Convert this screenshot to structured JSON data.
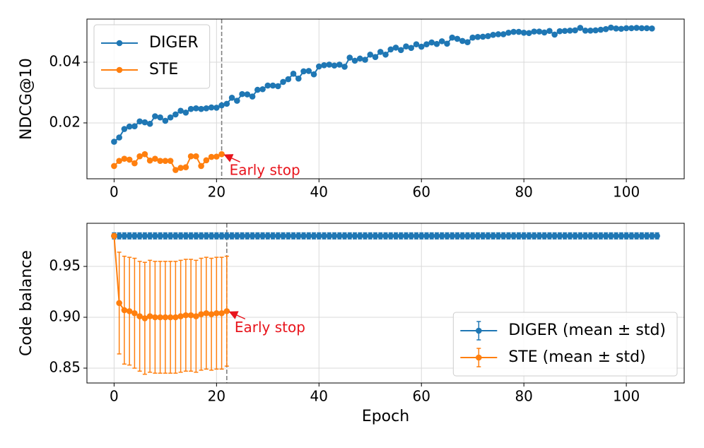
{
  "chart_data": [
    {
      "type": "line",
      "ylabel": "NDCG@10",
      "xlim": [
        -5.3,
        111.3
      ],
      "ylim": [
        0.0016,
        0.0542
      ],
      "xticks": [
        0,
        20,
        40,
        60,
        80,
        100
      ],
      "yticks": [
        0.02,
        0.04
      ],
      "grid": true,
      "legend": "upper left",
      "vline": 21,
      "annotation": {
        "text": "Early stop",
        "x": 21,
        "y": 0.0097
      },
      "series": [
        {
          "name": "DIGER",
          "color": "#1f77b4",
          "x": [
            0,
            1,
            2,
            3,
            4,
            5,
            6,
            7,
            8,
            9,
            10,
            11,
            12,
            13,
            14,
            15,
            16,
            17,
            18,
            19,
            20,
            21,
            22,
            23,
            24,
            25,
            26,
            27,
            28,
            29,
            30,
            31,
            32,
            33,
            34,
            35,
            36,
            37,
            38,
            39,
            40,
            41,
            42,
            43,
            44,
            45,
            46,
            47,
            48,
            49,
            50,
            51,
            52,
            53,
            54,
            55,
            56,
            57,
            58,
            59,
            60,
            61,
            62,
            63,
            64,
            65,
            66,
            67,
            68,
            69,
            70,
            71,
            72,
            73,
            74,
            75,
            76,
            77,
            78,
            79,
            80,
            81,
            82,
            83,
            84,
            85,
            86,
            87,
            88,
            89,
            90,
            91,
            92,
            93,
            94,
            95,
            96,
            97,
            98,
            99,
            100,
            101,
            102,
            103,
            104,
            105
          ],
          "values": [
            0.0138,
            0.0152,
            0.018,
            0.0188,
            0.0189,
            0.0205,
            0.0202,
            0.0197,
            0.0222,
            0.0218,
            0.0207,
            0.0218,
            0.0228,
            0.024,
            0.0234,
            0.0246,
            0.0248,
            0.0246,
            0.0248,
            0.0251,
            0.025,
            0.0258,
            0.0263,
            0.0283,
            0.0273,
            0.0295,
            0.0294,
            0.0287,
            0.0309,
            0.0311,
            0.0323,
            0.0323,
            0.0321,
            0.0335,
            0.0344,
            0.0362,
            0.0346,
            0.037,
            0.0371,
            0.036,
            0.0386,
            0.039,
            0.0392,
            0.0389,
            0.0392,
            0.0385,
            0.0415,
            0.0405,
            0.0412,
            0.0408,
            0.0425,
            0.0417,
            0.0434,
            0.0425,
            0.0442,
            0.0448,
            0.044,
            0.0452,
            0.0447,
            0.0459,
            0.0451,
            0.0459,
            0.0465,
            0.046,
            0.0469,
            0.0461,
            0.0481,
            0.0477,
            0.047,
            0.0466,
            0.0481,
            0.0483,
            0.0484,
            0.0486,
            0.049,
            0.0492,
            0.0492,
            0.0497,
            0.05,
            0.05,
            0.0497,
            0.0496,
            0.0501,
            0.0501,
            0.0498,
            0.0503,
            0.0491,
            0.0502,
            0.0503,
            0.0504,
            0.0505,
            0.0513,
            0.0504,
            0.0504,
            0.0505,
            0.0507,
            0.0509,
            0.0514,
            0.0511,
            0.051,
            0.0512,
            0.0512,
            0.0513,
            0.0512,
            0.0512,
            0.0511
          ]
        },
        {
          "name": "STE",
          "color": "#ff7f0e",
          "x": [
            0,
            1,
            2,
            3,
            4,
            5,
            6,
            7,
            8,
            9,
            10,
            11,
            12,
            13,
            14,
            15,
            16,
            17,
            18,
            19,
            20,
            21
          ],
          "values": [
            0.0058,
            0.0075,
            0.0082,
            0.0079,
            0.0067,
            0.009,
            0.0097,
            0.0076,
            0.0082,
            0.0075,
            0.0075,
            0.0075,
            0.0045,
            0.0052,
            0.0054,
            0.009,
            0.009,
            0.0058,
            0.0077,
            0.0088,
            0.0089,
            0.0097
          ]
        }
      ]
    },
    {
      "type": "line",
      "ylabel": "Code balance",
      "xlabel": "Epoch",
      "xlim": [
        -5.3,
        111.3
      ],
      "ylim": [
        0.8354,
        0.9924
      ],
      "xticks": [
        0,
        20,
        40,
        60,
        80,
        100
      ],
      "yticks": [
        0.85,
        {
          "value": 0.9,
          "label": "0.90"
        },
        0.95
      ],
      "grid": true,
      "legend": "lower right",
      "vline": 22,
      "annotation": {
        "text": "Early stop",
        "x": 22,
        "y": 0.906
      },
      "series": [
        {
          "name": "DIGER (mean ± std)",
          "color": "#1f77b4",
          "x": [
            0,
            1,
            2,
            3,
            4,
            5,
            6,
            7,
            8,
            9,
            10,
            11,
            12,
            13,
            14,
            15,
            16,
            17,
            18,
            19,
            20,
            21,
            22,
            23,
            24,
            25,
            26,
            27,
            28,
            29,
            30,
            31,
            32,
            33,
            34,
            35,
            36,
            37,
            38,
            39,
            40,
            41,
            42,
            43,
            44,
            45,
            46,
            47,
            48,
            49,
            50,
            51,
            52,
            53,
            54,
            55,
            56,
            57,
            58,
            59,
            60,
            61,
            62,
            63,
            64,
            65,
            66,
            67,
            68,
            69,
            70,
            71,
            72,
            73,
            74,
            75,
            76,
            77,
            78,
            79,
            80,
            81,
            82,
            83,
            84,
            85,
            86,
            87,
            88,
            89,
            90,
            91,
            92,
            93,
            94,
            95,
            96,
            97,
            98,
            99,
            100,
            101,
            102,
            103,
            104,
            105,
            106
          ],
          "values": [
            0.98,
            0.98,
            0.98,
            0.98,
            0.98,
            0.98,
            0.98,
            0.98,
            0.98,
            0.98,
            0.98,
            0.98,
            0.98,
            0.98,
            0.98,
            0.98,
            0.98,
            0.98,
            0.98,
            0.98,
            0.98,
            0.98,
            0.98,
            0.98,
            0.98,
            0.98,
            0.98,
            0.98,
            0.98,
            0.98,
            0.98,
            0.98,
            0.98,
            0.98,
            0.98,
            0.98,
            0.98,
            0.98,
            0.98,
            0.98,
            0.98,
            0.98,
            0.98,
            0.98,
            0.98,
            0.98,
            0.98,
            0.98,
            0.98,
            0.98,
            0.98,
            0.98,
            0.98,
            0.98,
            0.98,
            0.98,
            0.98,
            0.98,
            0.98,
            0.98,
            0.98,
            0.98,
            0.98,
            0.98,
            0.98,
            0.98,
            0.98,
            0.98,
            0.98,
            0.98,
            0.98,
            0.98,
            0.98,
            0.98,
            0.98,
            0.98,
            0.98,
            0.98,
            0.98,
            0.98,
            0.98,
            0.98,
            0.98,
            0.98,
            0.98,
            0.98,
            0.98,
            0.98,
            0.98,
            0.98,
            0.98,
            0.98,
            0.98,
            0.98,
            0.98,
            0.98,
            0.98,
            0.98,
            0.98,
            0.98,
            0.98,
            0.98,
            0.98,
            0.98,
            0.98,
            0.98,
            0.98
          ],
          "errors": [
            0.003,
            0.003,
            0.003,
            0.003,
            0.003,
            0.003,
            0.003,
            0.003,
            0.003,
            0.003,
            0.003,
            0.003,
            0.003,
            0.003,
            0.003,
            0.003,
            0.003,
            0.003,
            0.003,
            0.003,
            0.003,
            0.003,
            0.003,
            0.003,
            0.003,
            0.003,
            0.003,
            0.003,
            0.003,
            0.003,
            0.003,
            0.003,
            0.003,
            0.003,
            0.003,
            0.003,
            0.003,
            0.003,
            0.003,
            0.003,
            0.003,
            0.003,
            0.003,
            0.003,
            0.003,
            0.003,
            0.003,
            0.003,
            0.003,
            0.003,
            0.003,
            0.003,
            0.003,
            0.003,
            0.003,
            0.003,
            0.003,
            0.003,
            0.003,
            0.003,
            0.003,
            0.003,
            0.003,
            0.003,
            0.003,
            0.003,
            0.003,
            0.003,
            0.003,
            0.003,
            0.003,
            0.003,
            0.003,
            0.003,
            0.003,
            0.003,
            0.003,
            0.003,
            0.003,
            0.003,
            0.003,
            0.003,
            0.003,
            0.003,
            0.003,
            0.003,
            0.003,
            0.003,
            0.003,
            0.003,
            0.003,
            0.003,
            0.003,
            0.003,
            0.003,
            0.003,
            0.003,
            0.003,
            0.003,
            0.003,
            0.003,
            0.003,
            0.003,
            0.003,
            0.003,
            0.003,
            0.003
          ]
        },
        {
          "name": "STE (mean ± std)",
          "color": "#ff7f0e",
          "x": [
            0,
            1,
            2,
            3,
            4,
            5,
            6,
            7,
            8,
            9,
            10,
            11,
            12,
            13,
            14,
            15,
            16,
            17,
            18,
            19,
            20,
            21,
            22
          ],
          "values": [
            0.98,
            0.914,
            0.907,
            0.906,
            0.904,
            0.901,
            0.899,
            0.901,
            0.9,
            0.9,
            0.9,
            0.9,
            0.9,
            0.901,
            0.902,
            0.902,
            0.901,
            0.903,
            0.904,
            0.903,
            0.904,
            0.904,
            0.906
          ],
          "errors": [
            0.002,
            0.05,
            0.053,
            0.053,
            0.054,
            0.054,
            0.055,
            0.055,
            0.055,
            0.055,
            0.055,
            0.055,
            0.055,
            0.055,
            0.055,
            0.055,
            0.055,
            0.055,
            0.055,
            0.055,
            0.055,
            0.055,
            0.054
          ]
        }
      ]
    }
  ]
}
